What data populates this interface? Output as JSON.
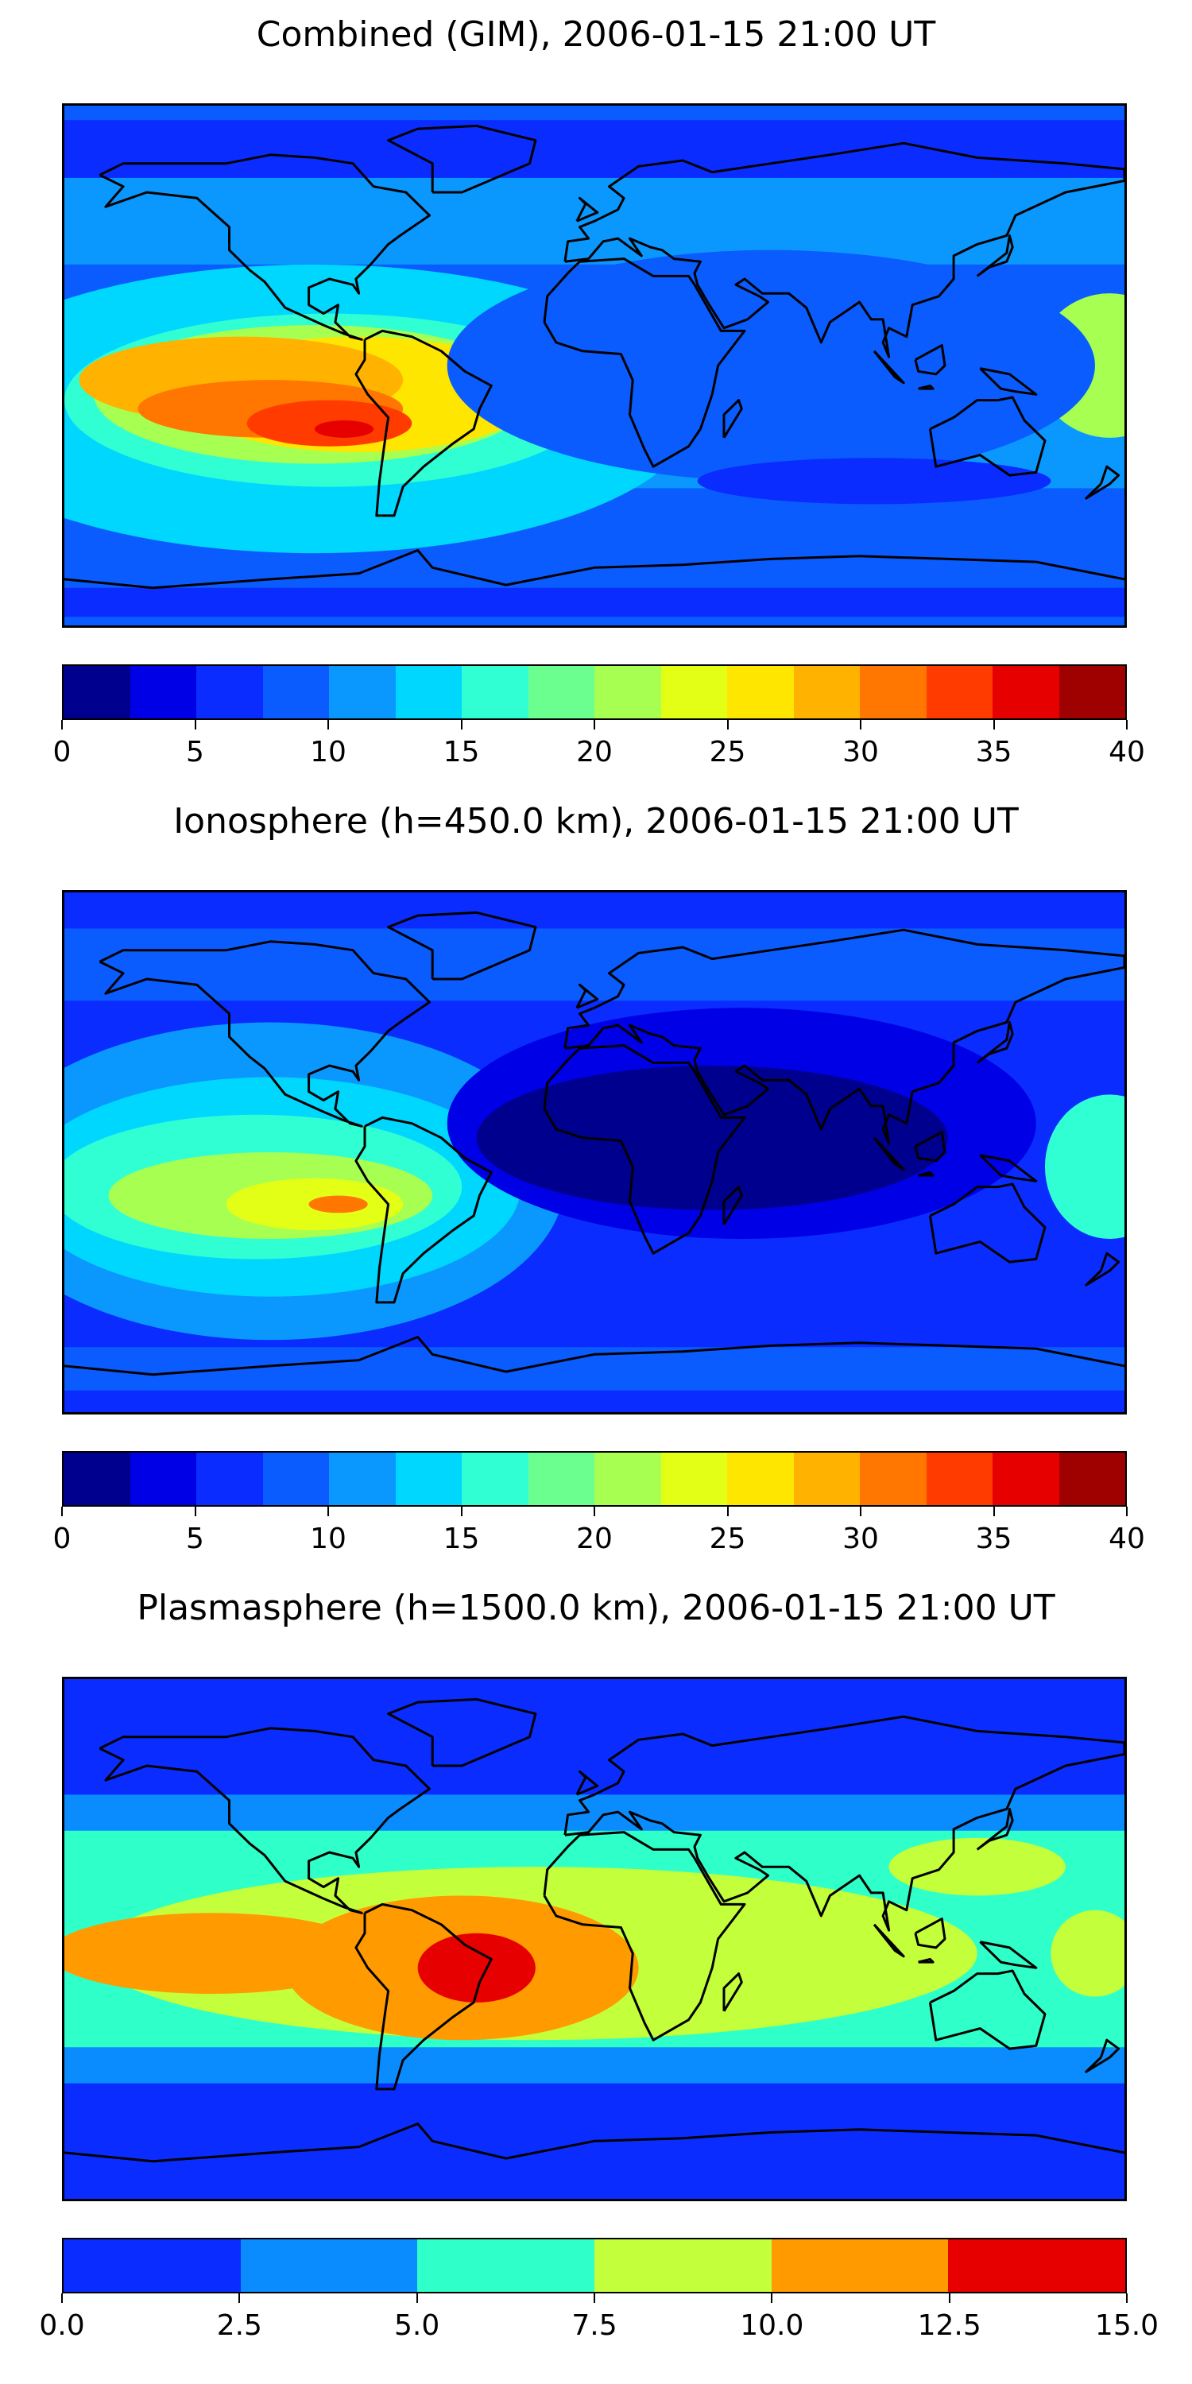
{
  "panels": [
    {
      "title": "Combined (GIM), 2006-01-15 21:00 UT",
      "colorbar": {
        "colors": [
          "#00008f",
          "#0000e6",
          "#0a2cff",
          "#0a5cff",
          "#0a98ff",
          "#00d7ff",
          "#2fffd2",
          "#6bff8f",
          "#a7ff52",
          "#e3ff15",
          "#ffe600",
          "#ffb200",
          "#ff7700",
          "#ff3b00",
          "#e60000",
          "#9f0000"
        ],
        "ticks": [
          "0",
          "5",
          "10",
          "15",
          "20",
          "25",
          "30",
          "35",
          "40"
        ]
      },
      "field": {
        "base": "#0a5cff",
        "features": [
          {
            "type": "band",
            "lat": 50,
            "width": 30,
            "color": "#0a98ff"
          },
          {
            "type": "band",
            "lat": -15,
            "width": 55,
            "color": "#0a98ff"
          },
          {
            "type": "blob",
            "lon": -95,
            "lat": -15,
            "rlon": 130,
            "rlat": 50,
            "color": "#00d7ff"
          },
          {
            "type": "blob",
            "lon": -90,
            "lat": -12,
            "rlon": 90,
            "rlat": 30,
            "color": "#2fffd2"
          },
          {
            "type": "blob",
            "lon": -95,
            "lat": -10,
            "rlon": 75,
            "rlat": 24,
            "color": "#a7ff52"
          },
          {
            "type": "blob",
            "lon": -80,
            "lat": -10,
            "rlon": 60,
            "rlat": 20,
            "color": "#ffe600"
          },
          {
            "type": "blob",
            "lon": -120,
            "lat": -5,
            "rlon": 55,
            "rlat": 15,
            "color": "#ffb200"
          },
          {
            "type": "blob",
            "lon": -110,
            "lat": -15,
            "rlon": 45,
            "rlat": 10,
            "color": "#ff7700"
          },
          {
            "type": "blob",
            "lon": -90,
            "lat": -20,
            "rlon": 28,
            "rlat": 8,
            "color": "#ff3b00"
          },
          {
            "type": "blob",
            "lon": -85,
            "lat": -22,
            "rlon": 10,
            "rlat": 3,
            "color": "#e60000"
          },
          {
            "type": "blob",
            "lon": 175,
            "lat": 0,
            "rlon": 25,
            "rlat": 25,
            "color": "#a7ff52"
          },
          {
            "type": "blob",
            "lon": 60,
            "lat": 0,
            "rlon": 110,
            "rlat": 40,
            "color": "#0a5cff"
          },
          {
            "type": "blob",
            "lon": 95,
            "lat": -40,
            "rlon": 60,
            "rlat": 8,
            "color": "#0a2cff"
          },
          {
            "type": "band",
            "lat": 75,
            "width": 20,
            "color": "#0a2cff"
          },
          {
            "type": "band",
            "lat": -82,
            "width": 10,
            "color": "#0a2cff"
          }
        ]
      }
    },
    {
      "title": "Ionosphere  (h=450.0 km), 2006-01-15 21:00 UT",
      "colorbar": {
        "colors": [
          "#00008f",
          "#0000e6",
          "#0a2cff",
          "#0a5cff",
          "#0a98ff",
          "#00d7ff",
          "#2fffd2",
          "#6bff8f",
          "#a7ff52",
          "#e3ff15",
          "#ffe600",
          "#ffb200",
          "#ff7700",
          "#ff3b00",
          "#e60000",
          "#9f0000"
        ],
        "ticks": [
          "0",
          "5",
          "10",
          "15",
          "20",
          "25",
          "30",
          "35",
          "40"
        ]
      },
      "field": {
        "base": "#0a2cff",
        "features": [
          {
            "type": "blob",
            "lon": -110,
            "lat": -10,
            "rlon": 100,
            "rlat": 55,
            "color": "#0a98ff"
          },
          {
            "type": "blob",
            "lon": -110,
            "lat": -12,
            "rlon": 85,
            "rlat": 38,
            "color": "#00d7ff"
          },
          {
            "type": "blob",
            "lon": -115,
            "lat": -12,
            "rlon": 70,
            "rlat": 25,
            "color": "#2fffd2"
          },
          {
            "type": "blob",
            "lon": -110,
            "lat": -15,
            "rlon": 55,
            "rlat": 15,
            "color": "#a7ff52"
          },
          {
            "type": "blob",
            "lon": -95,
            "lat": -18,
            "rlon": 30,
            "rlat": 9,
            "color": "#e3ff15"
          },
          {
            "type": "blob",
            "lon": -87,
            "lat": -18,
            "rlon": 10,
            "rlat": 3,
            "color": "#ff7700"
          },
          {
            "type": "blob",
            "lon": 175,
            "lat": -5,
            "rlon": 22,
            "rlat": 25,
            "color": "#2fffd2"
          },
          {
            "type": "blob",
            "lon": 50,
            "lat": 10,
            "rlon": 100,
            "rlat": 40,
            "color": "#0000e6"
          },
          {
            "type": "blob",
            "lon": 40,
            "lat": 5,
            "rlon": 80,
            "rlat": 25,
            "color": "#00008f"
          },
          {
            "type": "band",
            "lat": 65,
            "width": 25,
            "color": "#0a5cff"
          },
          {
            "type": "band",
            "lat": -75,
            "width": 15,
            "color": "#0a5cff"
          }
        ]
      }
    },
    {
      "title": "Plasmasphere (h=1500.0 km), 2006-01-15 21:00 UT",
      "colorbar": {
        "colors": [
          "#0a2cff",
          "#0a8cff",
          "#2fffc8",
          "#c3ff3b",
          "#ff9a00",
          "#e60000"
        ],
        "ticks": [
          "0.0",
          "2.5",
          "5.0",
          "7.5",
          "10.0",
          "12.5",
          "15.0"
        ]
      },
      "field": {
        "base": "#0a2cff",
        "features": [
          {
            "type": "band",
            "lat": 0,
            "width": 100,
            "color": "#0a8cff"
          },
          {
            "type": "band",
            "lat": 0,
            "width": 75,
            "color": "#2fffc8"
          },
          {
            "type": "blob",
            "lon": -20,
            "lat": -5,
            "rlon": 150,
            "rlat": 30,
            "color": "#c3ff3b"
          },
          {
            "type": "blob",
            "lon": -130,
            "lat": -5,
            "rlon": 55,
            "rlat": 14,
            "color": "#ff9a00"
          },
          {
            "type": "blob",
            "lon": -45,
            "lat": -10,
            "rlon": 60,
            "rlat": 25,
            "color": "#ff9a00"
          },
          {
            "type": "blob",
            "lon": -40,
            "lat": -10,
            "rlon": 20,
            "rlat": 12,
            "color": "#e60000"
          },
          {
            "type": "blob",
            "lon": 130,
            "lat": 25,
            "rlon": 30,
            "rlat": 10,
            "color": "#c3ff3b"
          },
          {
            "type": "blob",
            "lon": 170,
            "lat": -5,
            "rlon": 15,
            "rlat": 15,
            "color": "#c3ff3b"
          }
        ]
      }
    }
  ]
}
